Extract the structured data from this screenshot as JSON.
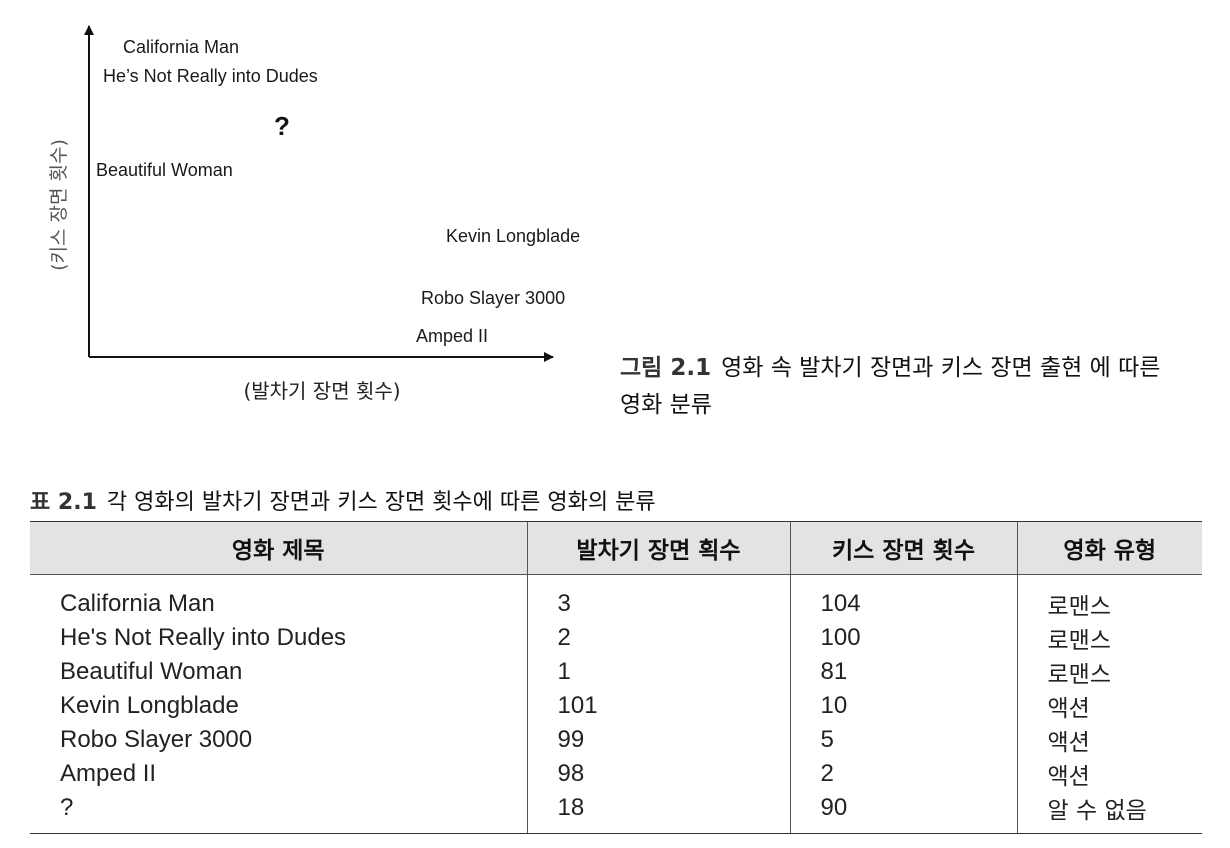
{
  "figure": {
    "caption_number": "그림 2.1",
    "caption_text": "영화 속 발차기 장면과 키스 장면 출현 에 따른 영화 분류",
    "x_axis_label": "(발차기 장면 횟수)",
    "y_axis_label": "(키스 장면 횟수)",
    "points": [
      {
        "label": "California Man"
      },
      {
        "label": "He’s Not Really into Dudes"
      },
      {
        "label": "?"
      },
      {
        "label": "Beautiful Woman"
      },
      {
        "label": "Kevin Longblade"
      },
      {
        "label": "Robo Slayer 3000"
      },
      {
        "label": "Amped II"
      }
    ]
  },
  "table": {
    "caption_number": "표 2.1",
    "caption_text": "각 영화의 발차기 장면과 키스 장면 횟수에 따른 영화의 분류",
    "headers": [
      "영화 제목",
      "발차기 장면 획수",
      "키스 장면 횟수",
      "영화 유형"
    ],
    "rows": [
      {
        "title": "California Man",
        "kicks": "3",
        "kisses": "104",
        "type": "로맨스"
      },
      {
        "title": "He's Not Really into Dudes",
        "kicks": "2",
        "kisses": "100",
        "type": "로맨스"
      },
      {
        "title": "Beautiful Woman",
        "kicks": "1",
        "kisses": "81",
        "type": "로맨스"
      },
      {
        "title": "Kevin Longblade",
        "kicks": "101",
        "kisses": "10",
        "type": "액션"
      },
      {
        "title": "Robo Slayer 3000",
        "kicks": "99",
        "kisses": "5",
        "type": "액션"
      },
      {
        "title": "Amped II",
        "kicks": "98",
        "kisses": "2",
        "type": "액션"
      },
      {
        "title": "?",
        "kicks": "18",
        "kisses": "90",
        "type": "알 수 없음"
      }
    ]
  }
}
